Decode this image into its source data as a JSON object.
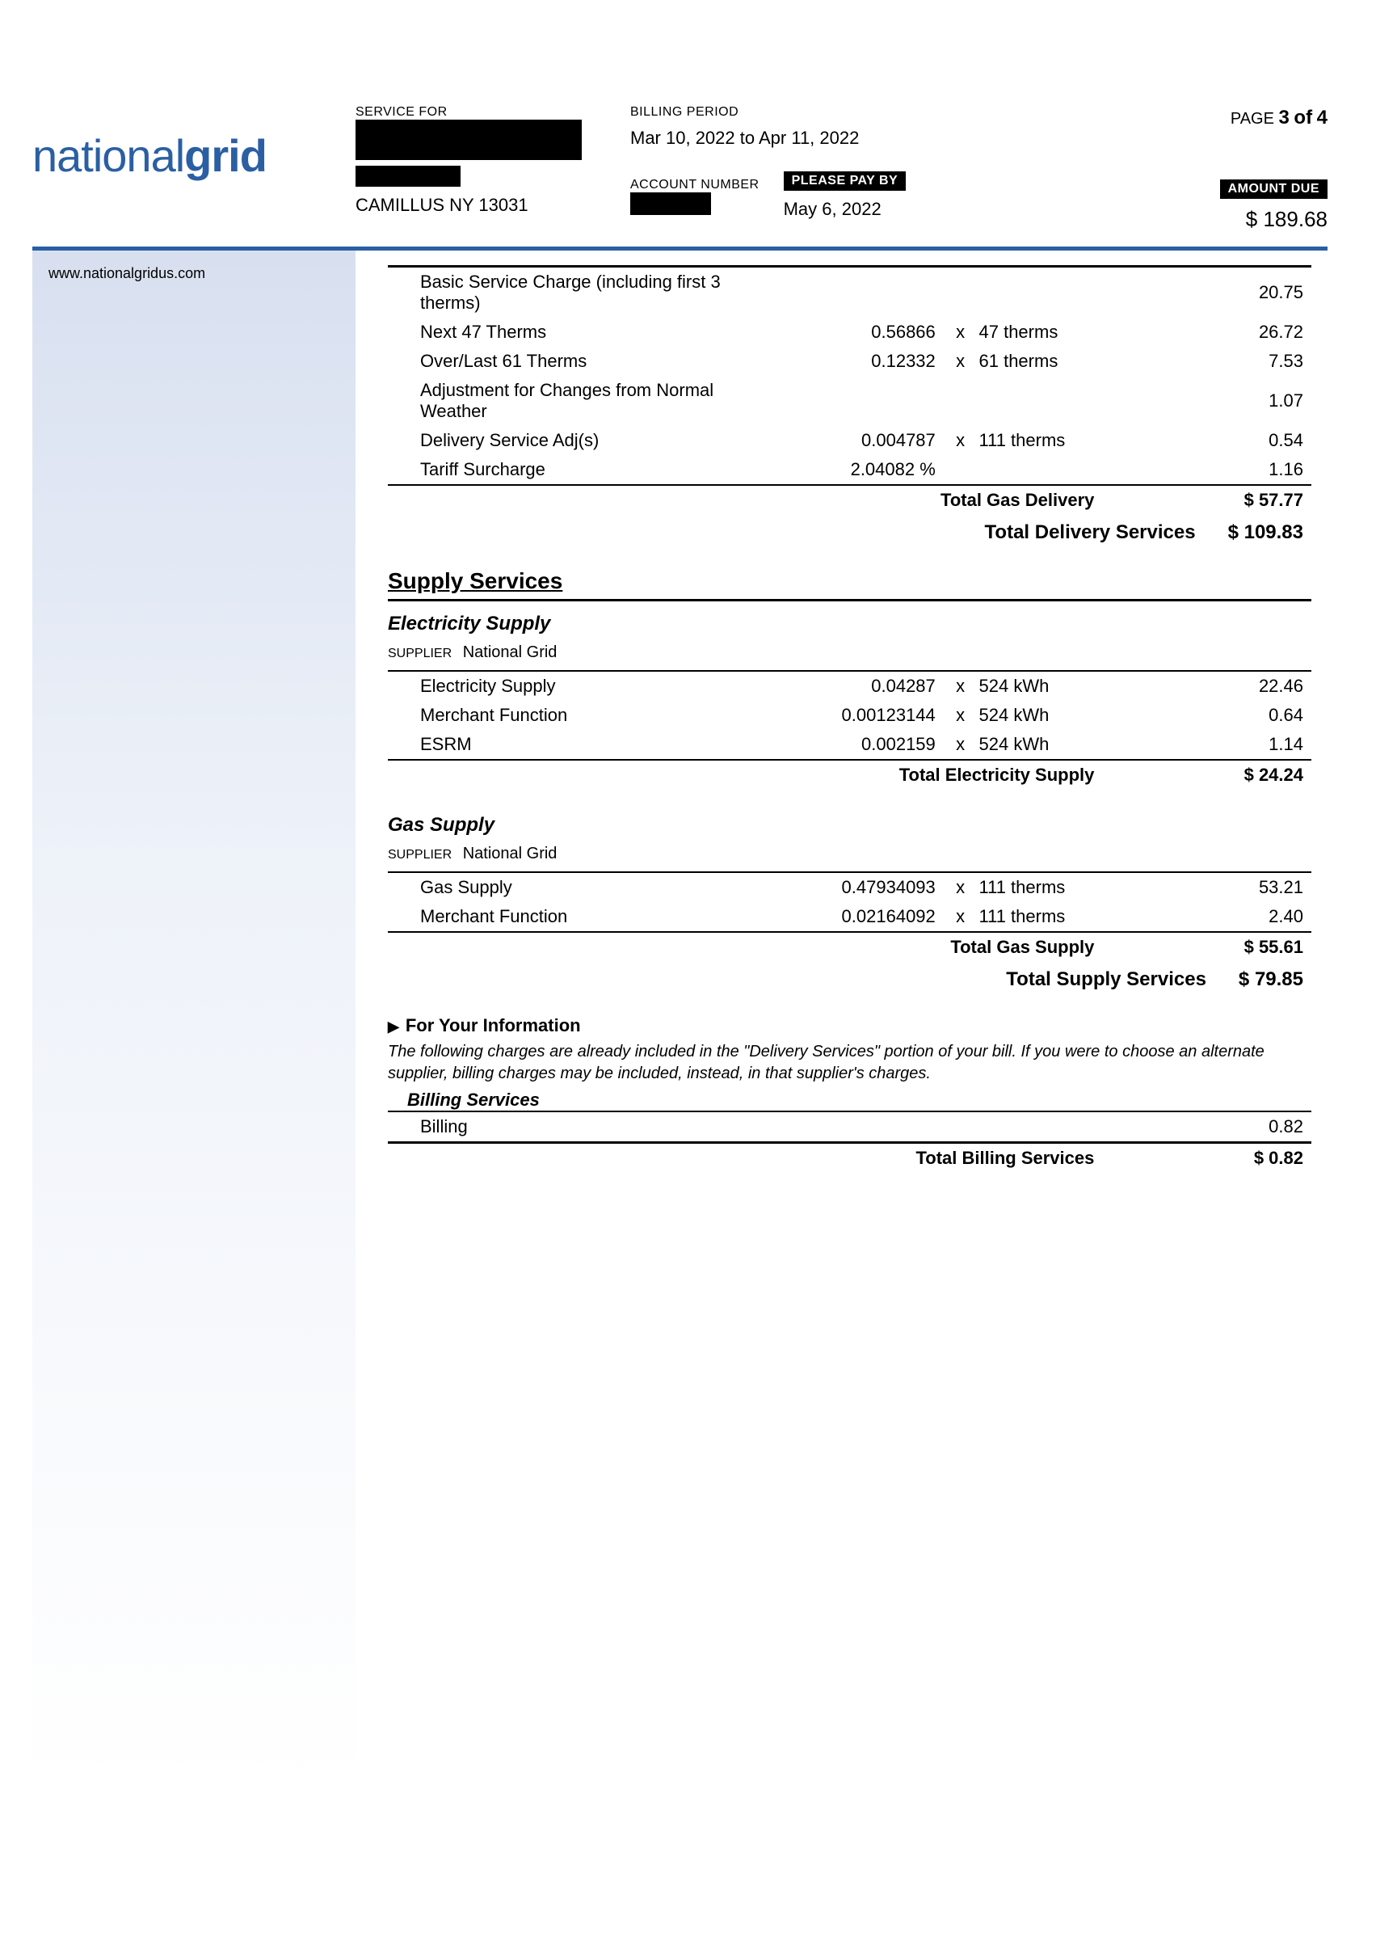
{
  "logo": {
    "part1": "national",
    "part2": "grid"
  },
  "service_for": {
    "label": "SERVICE FOR",
    "city": "CAMILLUS NY 13031"
  },
  "billing_period": {
    "label": "BILLING PERIOD",
    "value": "Mar 10, 2022  to Apr 11, 2022"
  },
  "page": {
    "label": "PAGE",
    "current": "3",
    "of_label": "of",
    "total": "4"
  },
  "account_number": {
    "label": "ACCOUNT NUMBER"
  },
  "please_pay_by": {
    "label": "PLEASE PAY BY",
    "value": "May 6, 2022"
  },
  "amount_due": {
    "label": "AMOUNT DUE",
    "value": "$ 189.68"
  },
  "website": "www.nationalgridus.com",
  "gas_delivery": {
    "rows": [
      {
        "desc": "Basic Service Charge (including first 3 therms)",
        "rate": "",
        "x": "",
        "qty": "",
        "amt": "20.75"
      },
      {
        "desc": "Next 47 Therms",
        "rate": "0.56866",
        "x": "x",
        "qty": "47 therms",
        "amt": "26.72"
      },
      {
        "desc": "Over/Last 61 Therms",
        "rate": "0.12332",
        "x": "x",
        "qty": "61 therms",
        "amt": "7.53"
      },
      {
        "desc": "Adjustment for Changes from Normal Weather",
        "rate": "",
        "x": "",
        "qty": "",
        "amt": "1.07"
      },
      {
        "desc": "Delivery Service Adj(s)",
        "rate": "0.004787",
        "x": "x",
        "qty": "111 therms",
        "amt": "0.54"
      },
      {
        "desc": "Tariff Surcharge",
        "rate": "2.04082 %",
        "x": "",
        "qty": "",
        "amt": "1.16"
      }
    ],
    "subtotal_label": "Total Gas Delivery",
    "subtotal_value": "$ 57.77"
  },
  "delivery_total": {
    "label": "Total Delivery Services",
    "value": "$ 109.83"
  },
  "supply_section": "Supply Services",
  "elec_supply": {
    "heading": "Electricity Supply",
    "supplier_label": "SUPPLIER",
    "supplier": "National Grid",
    "rows": [
      {
        "desc": "Electricity Supply",
        "rate": "0.04287",
        "x": "x",
        "qty": "524 kWh",
        "amt": "22.46"
      },
      {
        "desc": "Merchant Function",
        "rate": "0.00123144",
        "x": "x",
        "qty": "524 kWh",
        "amt": "0.64"
      },
      {
        "desc": "ESRM",
        "rate": "0.002159",
        "x": "x",
        "qty": "524 kWh",
        "amt": "1.14"
      }
    ],
    "subtotal_label": "Total Electricity Supply",
    "subtotal_value": "$ 24.24"
  },
  "gas_supply": {
    "heading": "Gas Supply",
    "supplier_label": "SUPPLIER",
    "supplier": "National Grid",
    "rows": [
      {
        "desc": "Gas Supply",
        "rate": "0.47934093",
        "x": "x",
        "qty": "111 therms",
        "amt": "53.21"
      },
      {
        "desc": "Merchant Function",
        "rate": "0.02164092",
        "x": "x",
        "qty": "111 therms",
        "amt": "2.40"
      }
    ],
    "subtotal_label": "Total Gas Supply",
    "subtotal_value": "$ 55.61"
  },
  "supply_total": {
    "label": "Total Supply Services",
    "value": "$ 79.85"
  },
  "info": {
    "heading": "For Your Information",
    "text": "The following charges are already included in the \"Delivery Services\" portion of your bill.  If you were to choose an alternate supplier, billing charges may be included, instead, in that supplier's charges."
  },
  "billing": {
    "heading": "Billing Services",
    "rows": [
      {
        "desc": "Billing",
        "amt": "0.82"
      }
    ],
    "subtotal_label": "Total Billing Services",
    "subtotal_value": "$ 0.82"
  }
}
